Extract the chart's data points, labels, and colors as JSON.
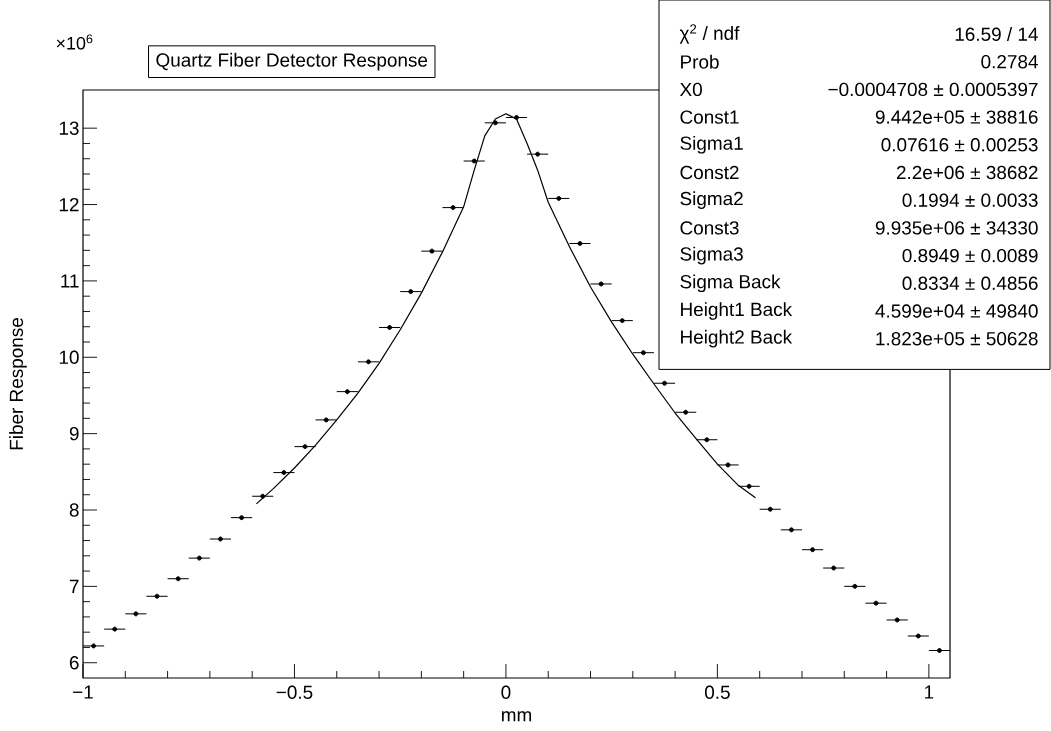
{
  "chart_data": {
    "type": "scatter",
    "marker": "none",
    "title": "Quartz Fiber Detector Response",
    "xlabel": "mm",
    "ylabel": "Fiber Response",
    "x": [
      -0.975,
      -0.925,
      -0.875,
      -0.825,
      -0.775,
      -0.725,
      -0.675,
      -0.625,
      -0.575,
      -0.525,
      -0.475,
      -0.425,
      -0.375,
      -0.325,
      -0.275,
      -0.225,
      -0.175,
      -0.125,
      -0.075,
      -0.025,
      0.025,
      0.075,
      0.125,
      0.175,
      0.225,
      0.275,
      0.325,
      0.375,
      0.425,
      0.475,
      0.525,
      0.575,
      0.625,
      0.675,
      0.725,
      0.775,
      0.825,
      0.875,
      0.925,
      0.975,
      1.025
    ],
    "xerrors": [
      0.025,
      0.025,
      0.025,
      0.025,
      0.025,
      0.025,
      0.025,
      0.025,
      0.025,
      0.025,
      0.025,
      0.025,
      0.025,
      0.025,
      0.025,
      0.025,
      0.025,
      0.025,
      0.025,
      0.025,
      0.025,
      0.025,
      0.025,
      0.025,
      0.025,
      0.025,
      0.025,
      0.025,
      0.025,
      0.025,
      0.025,
      0.025,
      0.025,
      0.025,
      0.025,
      0.025,
      0.025,
      0.025,
      0.025,
      0.025,
      0.025
    ],
    "values": [
      6.22,
      6.44,
      6.64,
      6.87,
      7.1,
      7.37,
      7.62,
      7.9,
      8.18,
      8.49,
      8.83,
      9.18,
      9.55,
      9.94,
      10.39,
      10.86,
      11.39,
      11.96,
      12.57,
      13.07,
      13.14,
      12.66,
      12.08,
      11.49,
      10.96,
      10.48,
      10.06,
      9.66,
      9.28,
      8.92,
      8.59,
      8.31,
      8.01,
      7.74,
      7.48,
      7.24,
      7.0,
      6.78,
      6.56,
      6.35,
      6.16
    ],
    "color": "#000000",
    "series": [
      {
        "type": "line",
        "color": "#000000",
        "x": [
          -0.59,
          -0.55,
          -0.5,
          -0.45,
          -0.4,
          -0.35,
          -0.3,
          -0.25,
          -0.2,
          -0.15,
          -0.1,
          -0.075,
          -0.05,
          -0.025,
          0,
          0.025,
          0.05,
          0.075,
          0.1,
          0.15,
          0.2,
          0.25,
          0.3,
          0.35,
          0.4,
          0.45,
          0.5,
          0.55,
          0.59
        ],
        "values": [
          8.08,
          8.28,
          8.55,
          8.85,
          9.18,
          9.53,
          9.92,
          10.36,
          10.84,
          11.38,
          11.97,
          12.45,
          12.9,
          13.12,
          13.19,
          13.12,
          12.8,
          12.45,
          12.03,
          11.45,
          10.92,
          10.46,
          10.04,
          9.65,
          9.27,
          8.93,
          8.6,
          8.32,
          8.16
        ]
      }
    ],
    "xlim": [
      -1,
      1.05
    ],
    "ylim": [
      5.8,
      13.5
    ],
    "xticks": [
      {
        "value": -1,
        "label": "−1"
      },
      {
        "value": -0.5,
        "label": "−0.5"
      },
      0,
      0.5,
      1
    ],
    "yticks": [
      6,
      7,
      8,
      9,
      10,
      11,
      12,
      13
    ],
    "annotations": [
      "×10$^{6}$",
      "χ$^{2}$ / ndf",
      "16.59 / 14",
      "Prob",
      "0.2784",
      "X0",
      "−0.0004708 ± 0.0005397",
      "Const1",
      "9.442e+05 ± 38816",
      "Sigma1",
      "0.07616 ± 0.00253",
      "Const2",
      "2.2e+06 ± 38682",
      "Sigma2",
      "0.1994 ± 0.0033",
      "Const3",
      "9.935e+06 ± 34330",
      "Sigma3",
      "0.8949 ± 0.0089",
      "Sigma Back",
      "0.8334 ± 0.4856",
      "Height1 Back",
      "4.599e+04 ± 49840",
      "Height2 Back",
      "1.823e+05 ± 50628"
    ]
  }
}
